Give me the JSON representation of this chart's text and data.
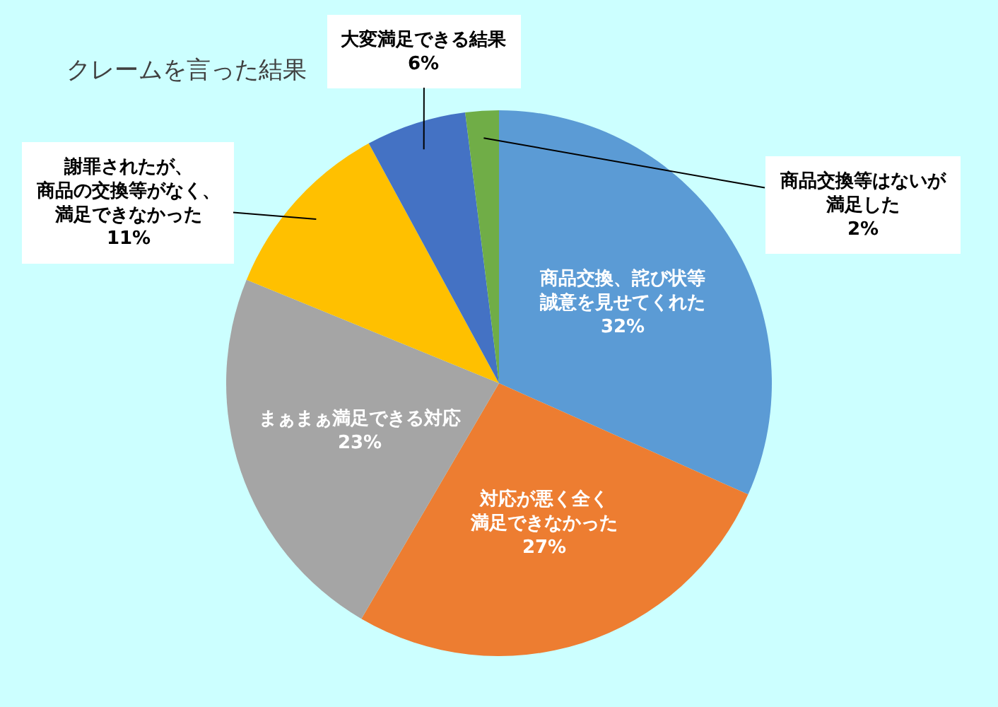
{
  "chart_data": {
    "type": "pie",
    "title": "クレームを言った結果",
    "categories": [
      "商品交換、詫び状等誠意を見せてくれた",
      "対応が悪く全く満足できなかった",
      "まぁまぁ満足できる対応",
      "謝罪されたが、商品の交換等がなく、満足できなかった",
      "大変満足できる結果",
      "商品交換等はないが満足した"
    ],
    "values": [
      32,
      27,
      23,
      11,
      6,
      2
    ],
    "colors": [
      "#5b9bd5",
      "#ed7d31",
      "#a5a5a5",
      "#ffc000",
      "#4472c4",
      "#70ad47"
    ],
    "value_labels": [
      "32%",
      "27%",
      "23%",
      "11%",
      "6%",
      "2%"
    ]
  }
}
